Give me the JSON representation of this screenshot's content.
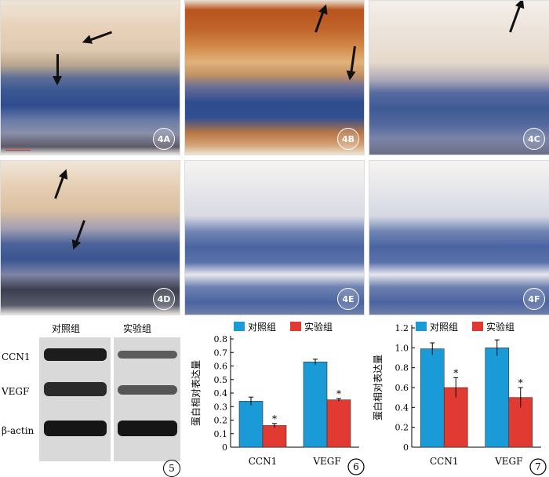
{
  "panels": [
    {
      "tag": "4A"
    },
    {
      "tag": "4B"
    },
    {
      "tag": "4C"
    },
    {
      "tag": "4D"
    },
    {
      "tag": "4E"
    },
    {
      "tag": "4F"
    }
  ],
  "western_blot": {
    "group_headers": [
      "对照组",
      "实验组"
    ],
    "row_labels": [
      "CCN1",
      "VEGF",
      "β-actin"
    ],
    "figure_number": "5"
  },
  "chart_data": [
    {
      "type": "bar",
      "figure_number": "6",
      "categories": [
        "CCN1",
        "VEGF"
      ],
      "series": [
        {
          "name": "对照组",
          "values": [
            0.34,
            0.63
          ],
          "errors": [
            0.03,
            0.02
          ],
          "color": "#1a9ad6"
        },
        {
          "name": "实验组",
          "values": [
            0.16,
            0.35
          ],
          "errors": [
            0.015,
            0.01
          ],
          "color": "#e03a32",
          "sig": [
            "*",
            "*"
          ]
        }
      ],
      "ylabel": "蛋白相对表达量",
      "ylim": [
        0,
        0.8
      ],
      "yticks": [
        "0",
        "0.1",
        "0.2",
        "0.3",
        "0.4",
        "0.5",
        "0.6",
        "0.7",
        "0.8"
      ],
      "legend": "top"
    },
    {
      "type": "bar",
      "figure_number": "7",
      "categories": [
        "CCN1",
        "VEGF"
      ],
      "series": [
        {
          "name": "对照组",
          "values": [
            0.99,
            1.0
          ],
          "errors": [
            0.06,
            0.08
          ],
          "color": "#1a9ad6"
        },
        {
          "name": "实验组",
          "values": [
            0.6,
            0.5
          ],
          "errors": [
            0.1,
            0.1
          ],
          "color": "#e03a32",
          "sig": [
            "*",
            "*"
          ]
        }
      ],
      "ylabel": "蛋白相对表达量",
      "ylim": [
        0,
        1.2
      ],
      "yticks": [
        "0",
        "0.2",
        "0.4",
        "0.6",
        "0.8",
        "1.0",
        "1.2"
      ],
      "legend": "top"
    }
  ]
}
